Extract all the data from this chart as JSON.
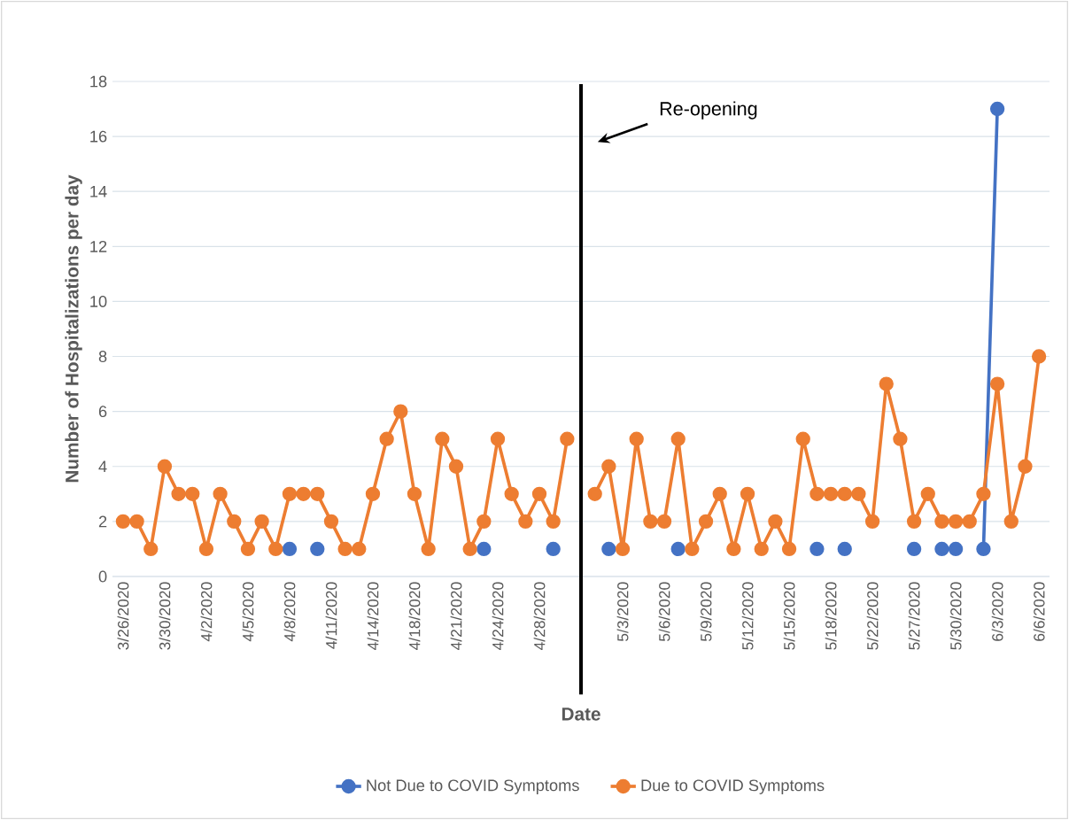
{
  "chart_data": {
    "type": "line",
    "xlabel": "Date",
    "ylabel": "Number of Hospitalizations per day",
    "categories": [
      "3/26/2020",
      null,
      null,
      "3/30/2020",
      null,
      null,
      "4/2/2020",
      null,
      null,
      "4/5/2020",
      null,
      null,
      "4/8/2020",
      null,
      null,
      "4/11/2020",
      null,
      null,
      "4/14/2020",
      null,
      null,
      "4/18/2020",
      null,
      null,
      "4/21/2020",
      null,
      null,
      "4/24/2020",
      null,
      null,
      "4/28/2020",
      null,
      null,
      null,
      null,
      null,
      "5/3/2020",
      null,
      null,
      "5/6/2020",
      null,
      null,
      "5/9/2020",
      null,
      null,
      "5/12/2020",
      null,
      null,
      "5/15/2020",
      null,
      null,
      "5/18/2020",
      null,
      null,
      "5/22/2020",
      null,
      null,
      "5/27/2020",
      null,
      null,
      "5/30/2020",
      null,
      null,
      "6/3/2020",
      null,
      null,
      "6/6/2020"
    ],
    "series": [
      {
        "name": "Not Due to COVID Symptoms",
        "color": "#4472c4",
        "values": [
          null,
          null,
          null,
          null,
          null,
          null,
          null,
          null,
          null,
          null,
          null,
          null,
          1,
          null,
          1,
          null,
          null,
          null,
          null,
          null,
          null,
          null,
          null,
          null,
          null,
          null,
          1,
          null,
          null,
          null,
          null,
          1,
          null,
          null,
          null,
          1,
          null,
          null,
          null,
          null,
          1,
          null,
          null,
          null,
          null,
          null,
          null,
          null,
          null,
          null,
          1,
          null,
          1,
          null,
          null,
          null,
          null,
          1,
          null,
          1,
          1,
          null,
          1,
          17,
          null,
          null,
          null
        ]
      },
      {
        "name": "Due to COVID Symptoms",
        "color": "#ed7d31",
        "values": [
          2,
          2,
          1,
          4,
          3,
          3,
          1,
          3,
          2,
          1,
          2,
          1,
          3,
          3,
          3,
          2,
          1,
          1,
          3,
          5,
          6,
          3,
          1,
          5,
          4,
          1,
          2,
          5,
          3,
          2,
          3,
          2,
          5,
          null,
          3,
          4,
          1,
          5,
          2,
          2,
          5,
          1,
          2,
          3,
          1,
          3,
          1,
          2,
          1,
          5,
          3,
          3,
          3,
          3,
          2,
          7,
          5,
          2,
          3,
          2,
          2,
          2,
          3,
          7,
          2,
          4,
          8
        ]
      }
    ],
    "ylim": [
      0,
      18
    ],
    "yticks": [
      0,
      2,
      4,
      6,
      8,
      10,
      12,
      14,
      16,
      18
    ],
    "annotations": [
      "Re-opening"
    ],
    "grid": "y",
    "legend": "bottom",
    "marker": "circle",
    "line_style": "solid"
  }
}
